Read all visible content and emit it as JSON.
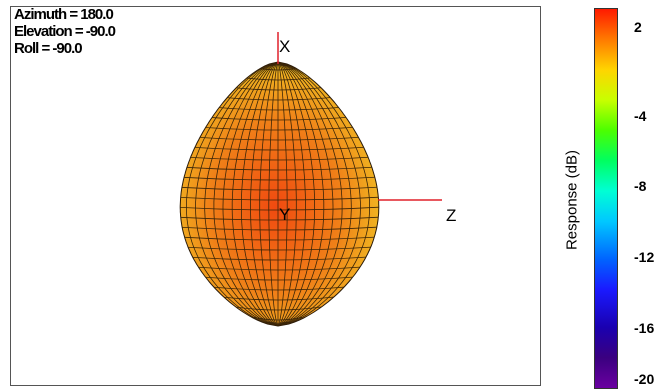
{
  "orientation": {
    "azimuth": "Azimuth = 180.0",
    "elevation": "Elevation = -90.0",
    "roll": "Roll = -90.0"
  },
  "axes": {
    "x": "X",
    "y": "Y",
    "z": "Z"
  },
  "colors": {
    "axis_line": "#e0202a",
    "mesh": "#3a2a10",
    "surface_center": "#f05a10",
    "surface_edge": "#f0c020"
  },
  "chart_data": {
    "type": "heatmap",
    "description_type": "3d-radiation-pattern",
    "colorbar": {
      "label": "Response (dB)",
      "ticks": [
        2,
        -4,
        -8,
        -12,
        -16,
        -20
      ],
      "range": [
        -20,
        3
      ]
    }
  }
}
